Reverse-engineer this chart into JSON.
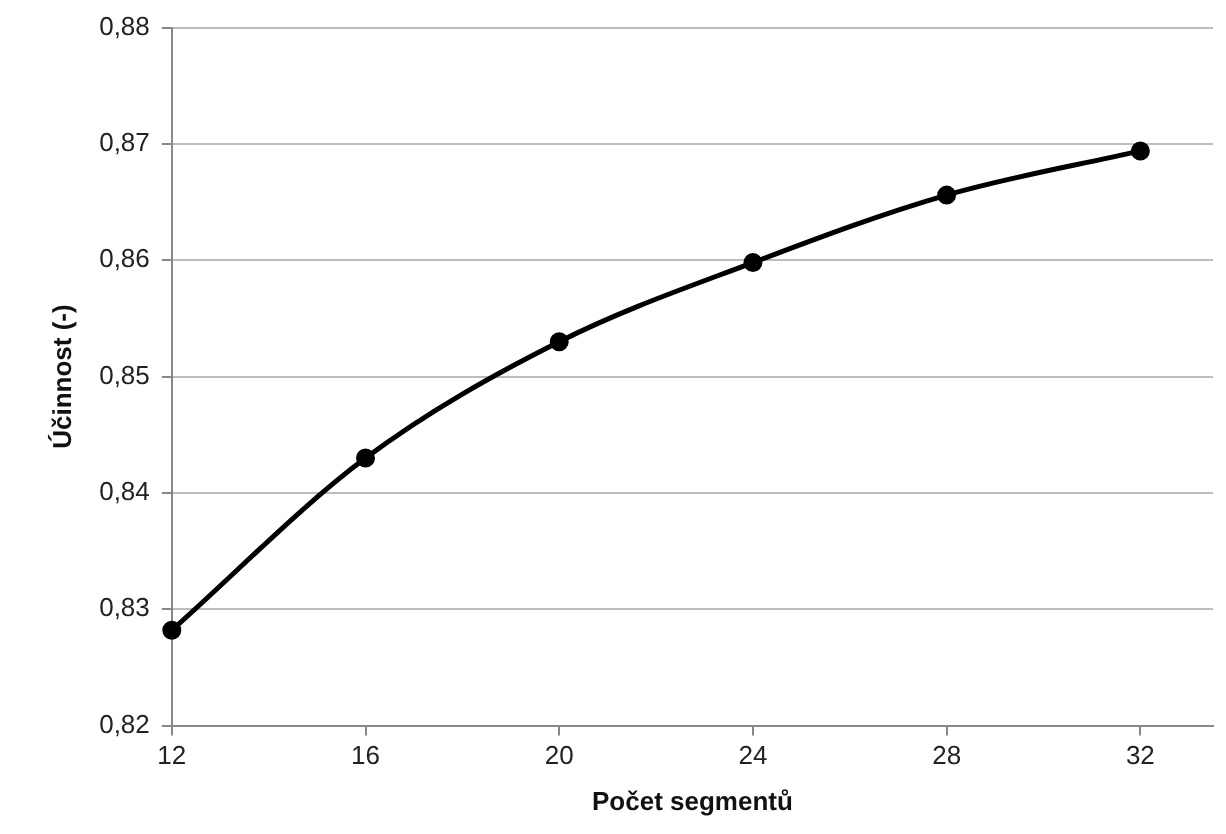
{
  "chart_data": {
    "type": "line",
    "xlabel": "Počet segmentů",
    "ylabel": "Účinnost (-)",
    "x": [
      12,
      16,
      20,
      24,
      28,
      32
    ],
    "series": [
      {
        "color": "#000000",
        "values": [
          0.8282,
          0.843,
          0.853,
          0.8598,
          0.8656,
          0.8694
        ]
      }
    ],
    "xlim": [
      12,
      33.5
    ],
    "xticks": [
      12,
      16,
      20,
      24,
      28,
      32
    ],
    "ylim": [
      0.82,
      0.88
    ],
    "yticks": [
      {
        "value": 0.82,
        "label": "0,82"
      },
      {
        "value": 0.83,
        "label": "0,83"
      },
      {
        "value": 0.84,
        "label": "0,84"
      },
      {
        "value": 0.85,
        "label": "0,85"
      },
      {
        "value": 0.86,
        "label": "0,86"
      },
      {
        "value": 0.87,
        "label": "0,87"
      },
      {
        "value": 0.88,
        "label": "0,88"
      }
    ],
    "grid": "y",
    "legend": false,
    "marker": "circle",
    "line_style": "solid"
  }
}
